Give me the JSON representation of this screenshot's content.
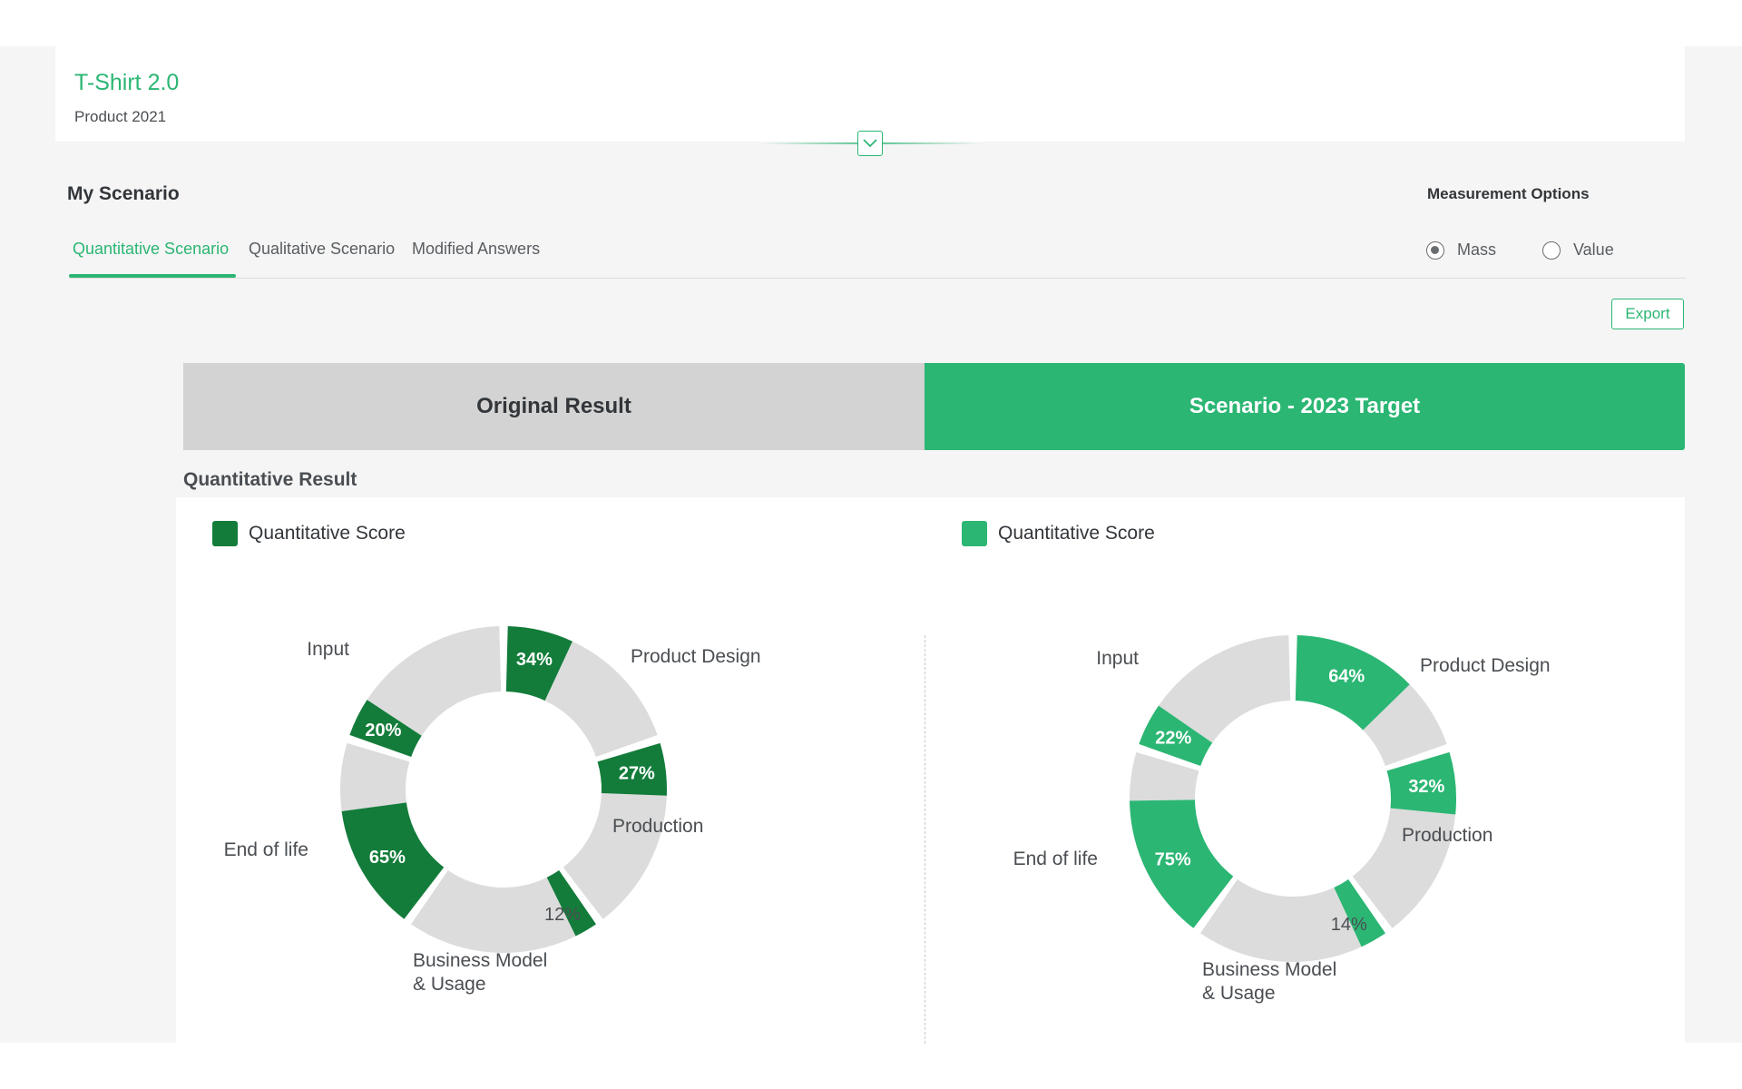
{
  "header": {
    "title": "T-Shirt 2.0",
    "subtitle": "Product 2021"
  },
  "section": {
    "title": "My Scenario",
    "tabs": [
      {
        "label": "Quantitative Scenario",
        "active": true
      },
      {
        "label": "Qualitative Scenario",
        "active": false
      },
      {
        "label": "Modified Answers",
        "active": false
      }
    ]
  },
  "measurement": {
    "title": "Measurement Options",
    "options": [
      {
        "label": "Mass",
        "selected": true
      },
      {
        "label": "Value",
        "selected": false
      }
    ]
  },
  "toolbar": {
    "export_label": "Export"
  },
  "toggle": {
    "left_label": "Original Result",
    "right_label": "Scenario - 2023 Target"
  },
  "result": {
    "title": "Quantitative Result"
  },
  "colors": {
    "accent": "#2bb673",
    "dark_green": "#137c3a",
    "light_green": "#2bb673",
    "segment_gray": "#dcdcdc"
  },
  "chart_data": [
    {
      "type": "donut",
      "legend": "Quantitative Score",
      "color": "#137c3a",
      "categories": [
        {
          "name": "Product Design",
          "label_lines": [
            "Product Design"
          ],
          "value": 34,
          "pct_label": "34%"
        },
        {
          "name": "Production",
          "label_lines": [
            "Production"
          ],
          "value": 27,
          "pct_label": "27%"
        },
        {
          "name": "Business Model & Usage",
          "label_lines": [
            "Business Model",
            "& Usage"
          ],
          "value": 12,
          "pct_label": "12%"
        },
        {
          "name": "End of life",
          "label_lines": [
            "End of life"
          ],
          "value": 65,
          "pct_label": "65%"
        },
        {
          "name": "Input",
          "label_lines": [
            "Input"
          ],
          "value": 20,
          "pct_label": "20%"
        }
      ]
    },
    {
      "type": "donut",
      "legend": "Quantitative Score",
      "color": "#2bb673",
      "categories": [
        {
          "name": "Product Design",
          "label_lines": [
            "Product Design"
          ],
          "value": 64,
          "pct_label": "64%"
        },
        {
          "name": "Production",
          "label_lines": [
            "Production"
          ],
          "value": 32,
          "pct_label": "32%"
        },
        {
          "name": "Business Model & Usage",
          "label_lines": [
            "Business Model",
            "& Usage"
          ],
          "value": 14,
          "pct_label": "14%"
        },
        {
          "name": "End of life",
          "label_lines": [
            "End of life"
          ],
          "value": 75,
          "pct_label": "75%"
        },
        {
          "name": "Input",
          "label_lines": [
            "Input"
          ],
          "value": 22,
          "pct_label": "22%"
        }
      ]
    }
  ]
}
